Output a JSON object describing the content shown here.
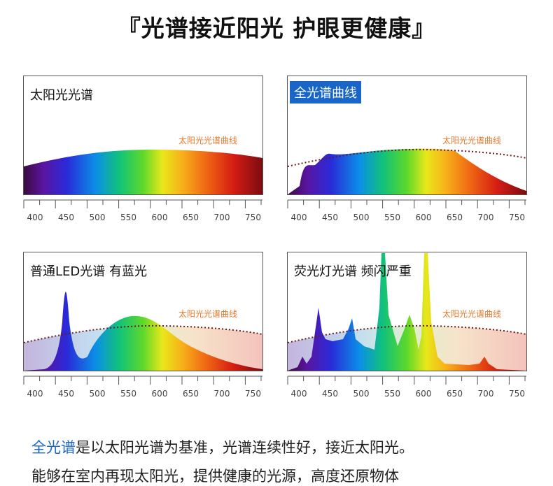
{
  "title": "『光谱接近阳光 护眼更健康』",
  "curve_label": "太阳光光谱曲线",
  "ticks": [
    "400",
    "450",
    "500",
    "550",
    "600",
    "650",
    "700",
    "750"
  ],
  "panels": [
    {
      "label": "太阳光光谱",
      "highlight": false
    },
    {
      "label": "全光谱曲线",
      "highlight": true
    },
    {
      "label": "普通LED光谱 有蓝光",
      "highlight": false
    },
    {
      "label": "荧光灯光谱 频闪严重",
      "highlight": false
    }
  ],
  "paragraph": {
    "highlight": "全光谱",
    "line1_rest": "是以太阳光谱为基准，光谱连续性好，接近太阳光。",
    "line2": "能够在室内再现太阳光，提供健康的光源，高度还原物体"
  },
  "colors": {
    "accent": "#1a66c8",
    "curve_label": "#e87a2c"
  }
}
